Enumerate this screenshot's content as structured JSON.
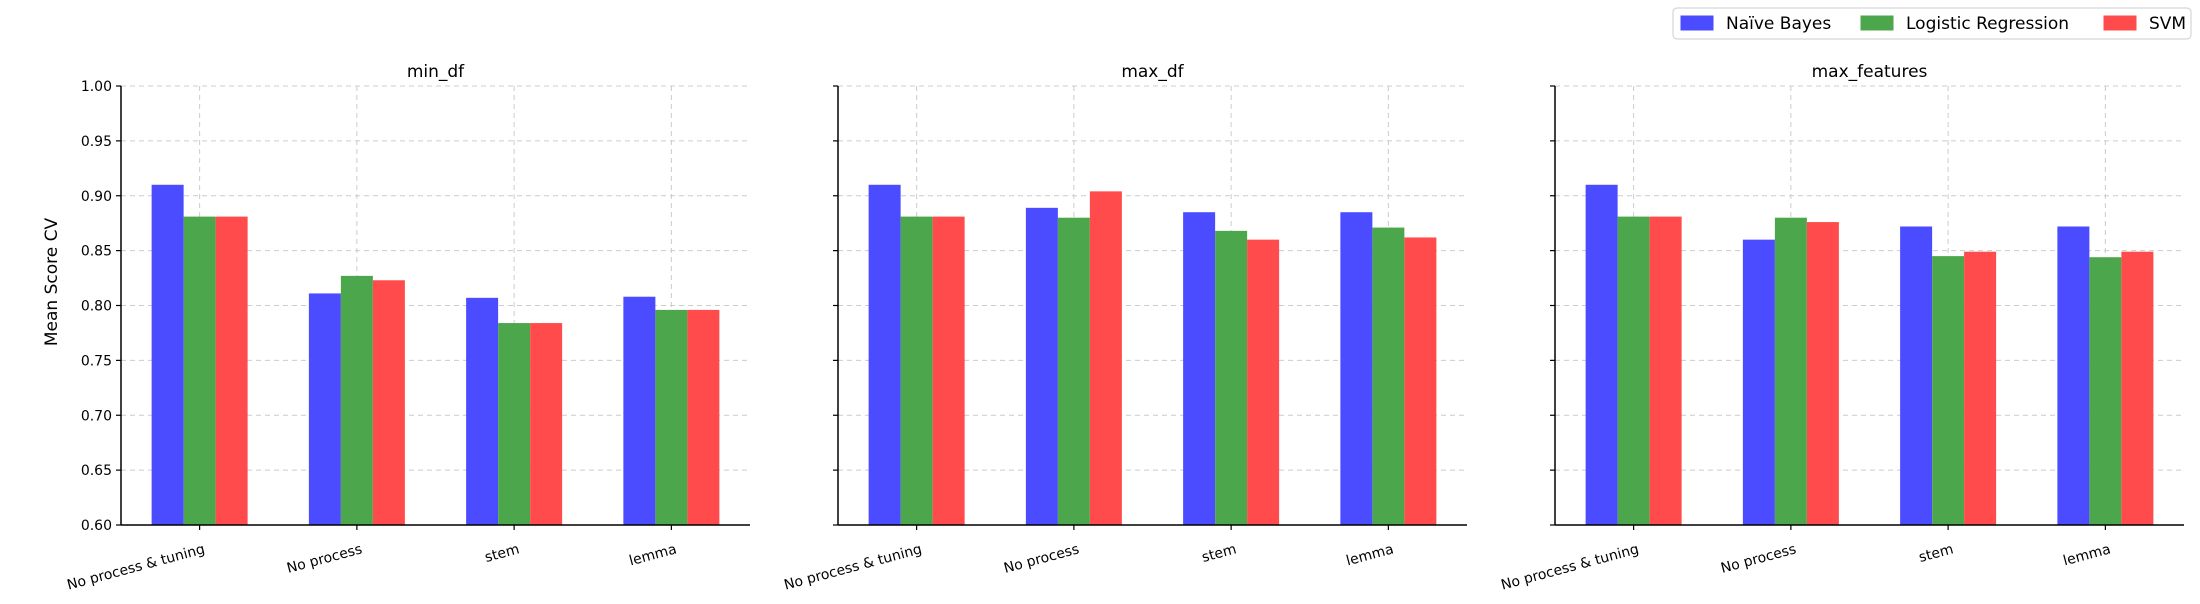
{
  "figure": {
    "ylabel": "Mean Score CV",
    "legend_position": "top-right"
  },
  "chart_data": [
    {
      "type": "bar",
      "title": "min_df",
      "categories": [
        "No process & tuning",
        "No process",
        "stem",
        "lemma"
      ],
      "ylim": [
        0.6,
        1.0
      ],
      "yticks": [
        "0.60",
        "0.65",
        "0.70",
        "0.75",
        "0.80",
        "0.85",
        "0.90",
        "0.95",
        "1.00"
      ],
      "grid": true,
      "series": [
        {
          "name": "Naïve Bayes",
          "color": "#4b4bff",
          "values": [
            0.91,
            0.811,
            0.807,
            0.808
          ]
        },
        {
          "name": "Logistic Regression",
          "color": "#4ca64c",
          "values": [
            0.881,
            0.827,
            0.784,
            0.796
          ]
        },
        {
          "name": "SVM",
          "color": "#ff4b4b",
          "values": [
            0.881,
            0.823,
            0.784,
            0.796
          ]
        }
      ]
    },
    {
      "type": "bar",
      "title": "max_df",
      "categories": [
        "No process & tuning",
        "No process",
        "stem",
        "lemma"
      ],
      "ylim": [
        0.6,
        1.0
      ],
      "grid": true,
      "series": [
        {
          "name": "Naïve Bayes",
          "color": "#4b4bff",
          "values": [
            0.91,
            0.889,
            0.885,
            0.885
          ]
        },
        {
          "name": "Logistic Regression",
          "color": "#4ca64c",
          "values": [
            0.881,
            0.88,
            0.868,
            0.871
          ]
        },
        {
          "name": "SVM",
          "color": "#ff4b4b",
          "values": [
            0.881,
            0.904,
            0.86,
            0.862
          ]
        }
      ]
    },
    {
      "type": "bar",
      "title": "max_features",
      "categories": [
        "No process & tuning",
        "No process",
        "stem",
        "lemma"
      ],
      "ylim": [
        0.6,
        1.0
      ],
      "grid": true,
      "series": [
        {
          "name": "Naïve Bayes",
          "color": "#4b4bff",
          "values": [
            0.91,
            0.86,
            0.872,
            0.872
          ]
        },
        {
          "name": "Logistic Regression",
          "color": "#4ca64c",
          "values": [
            0.881,
            0.88,
            0.845,
            0.844
          ]
        },
        {
          "name": "SVM",
          "color": "#ff4b4b",
          "values": [
            0.881,
            0.876,
            0.849,
            0.849
          ]
        }
      ]
    }
  ]
}
